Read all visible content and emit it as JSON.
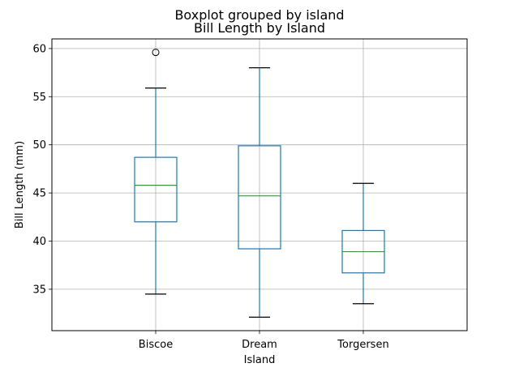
{
  "chart_data": {
    "type": "box",
    "suptitle": "Boxplot grouped by island",
    "title": "Bill Length by Island",
    "xlabel": "Island",
    "ylabel": "Bill Length (mm)",
    "ylim": [
      30.7,
      61.0
    ],
    "yticks": [
      35,
      40,
      45,
      50,
      55,
      60
    ],
    "grid": true,
    "colors": {
      "box": "#1f77b4",
      "median": "#2ca02c",
      "whisker": "#1f77b4",
      "cap": "#000000",
      "grid": "#b0b0b0",
      "flier": "#000000"
    },
    "categories": [
      "Biscoe",
      "Dream",
      "Torgersen"
    ],
    "boxes": [
      {
        "category": "Biscoe",
        "whislo": 34.5,
        "q1": 42.0,
        "med": 45.8,
        "q3": 48.7,
        "whishi": 55.9,
        "fliers": [
          59.6
        ]
      },
      {
        "category": "Dream",
        "whislo": 32.1,
        "q1": 39.2,
        "med": 44.7,
        "q3": 49.9,
        "whishi": 58.0,
        "fliers": []
      },
      {
        "category": "Torgersen",
        "whislo": 33.5,
        "q1": 36.7,
        "med": 38.9,
        "q3": 41.1,
        "whishi": 46.0,
        "fliers": []
      }
    ]
  }
}
